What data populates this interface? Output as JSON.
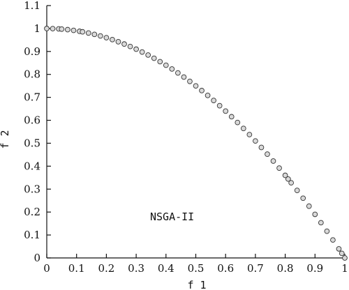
{
  "chart_data": {
    "type": "scatter",
    "title": "",
    "xlabel": "f 1",
    "ylabel": "f 2",
    "xlim": [
      0,
      1
    ],
    "ylim": [
      0,
      1.1
    ],
    "xticks": [
      "0",
      "0.1",
      "0.2",
      "0.3",
      "0.4",
      "0.5",
      "0.6",
      "0.7",
      "0.8",
      "0.9",
      "1"
    ],
    "yticks": [
      "0",
      "0.1",
      "0.2",
      "0.3",
      "0.4",
      "0.5",
      "0.6",
      "0.7",
      "0.8",
      "0.9",
      "1",
      "1.1"
    ],
    "grid": false,
    "annotation": "NSGA-II",
    "series": [
      {
        "points": [
          [
            0.0,
            1.0
          ],
          [
            0.02,
            0.9996
          ],
          [
            0.04,
            0.9984
          ],
          [
            0.05,
            0.9975
          ],
          [
            0.07,
            0.9951
          ],
          [
            0.09,
            0.9919
          ],
          [
            0.11,
            0.9879
          ],
          [
            0.12,
            0.9856
          ],
          [
            0.14,
            0.9804
          ],
          [
            0.16,
            0.9744
          ],
          [
            0.18,
            0.9676
          ],
          [
            0.2,
            0.96
          ],
          [
            0.22,
            0.9516
          ],
          [
            0.24,
            0.9424
          ],
          [
            0.26,
            0.9324
          ],
          [
            0.28,
            0.9216
          ],
          [
            0.3,
            0.91
          ],
          [
            0.32,
            0.8976
          ],
          [
            0.34,
            0.8844
          ],
          [
            0.36,
            0.8704
          ],
          [
            0.38,
            0.8556
          ],
          [
            0.4,
            0.84
          ],
          [
            0.42,
            0.8236
          ],
          [
            0.44,
            0.8064
          ],
          [
            0.46,
            0.7884
          ],
          [
            0.48,
            0.7696
          ],
          [
            0.5,
            0.75
          ],
          [
            0.52,
            0.7296
          ],
          [
            0.54,
            0.7084
          ],
          [
            0.56,
            0.6864
          ],
          [
            0.58,
            0.6636
          ],
          [
            0.6,
            0.64
          ],
          [
            0.62,
            0.6156
          ],
          [
            0.64,
            0.5904
          ],
          [
            0.66,
            0.5644
          ],
          [
            0.68,
            0.5376
          ],
          [
            0.7,
            0.51
          ],
          [
            0.72,
            0.4816
          ],
          [
            0.74,
            0.4524
          ],
          [
            0.76,
            0.4224
          ],
          [
            0.78,
            0.3916
          ],
          [
            0.8,
            0.36
          ],
          [
            0.81,
            0.3439
          ],
          [
            0.82,
            0.3276
          ],
          [
            0.84,
            0.2944
          ],
          [
            0.86,
            0.2604
          ],
          [
            0.88,
            0.2256
          ],
          [
            0.9,
            0.19
          ],
          [
            0.92,
            0.1536
          ],
          [
            0.94,
            0.1164
          ],
          [
            0.96,
            0.0784
          ],
          [
            0.98,
            0.0396
          ],
          [
            0.99,
            0.0199
          ],
          [
            1.0,
            0.0
          ]
        ]
      }
    ]
  }
}
